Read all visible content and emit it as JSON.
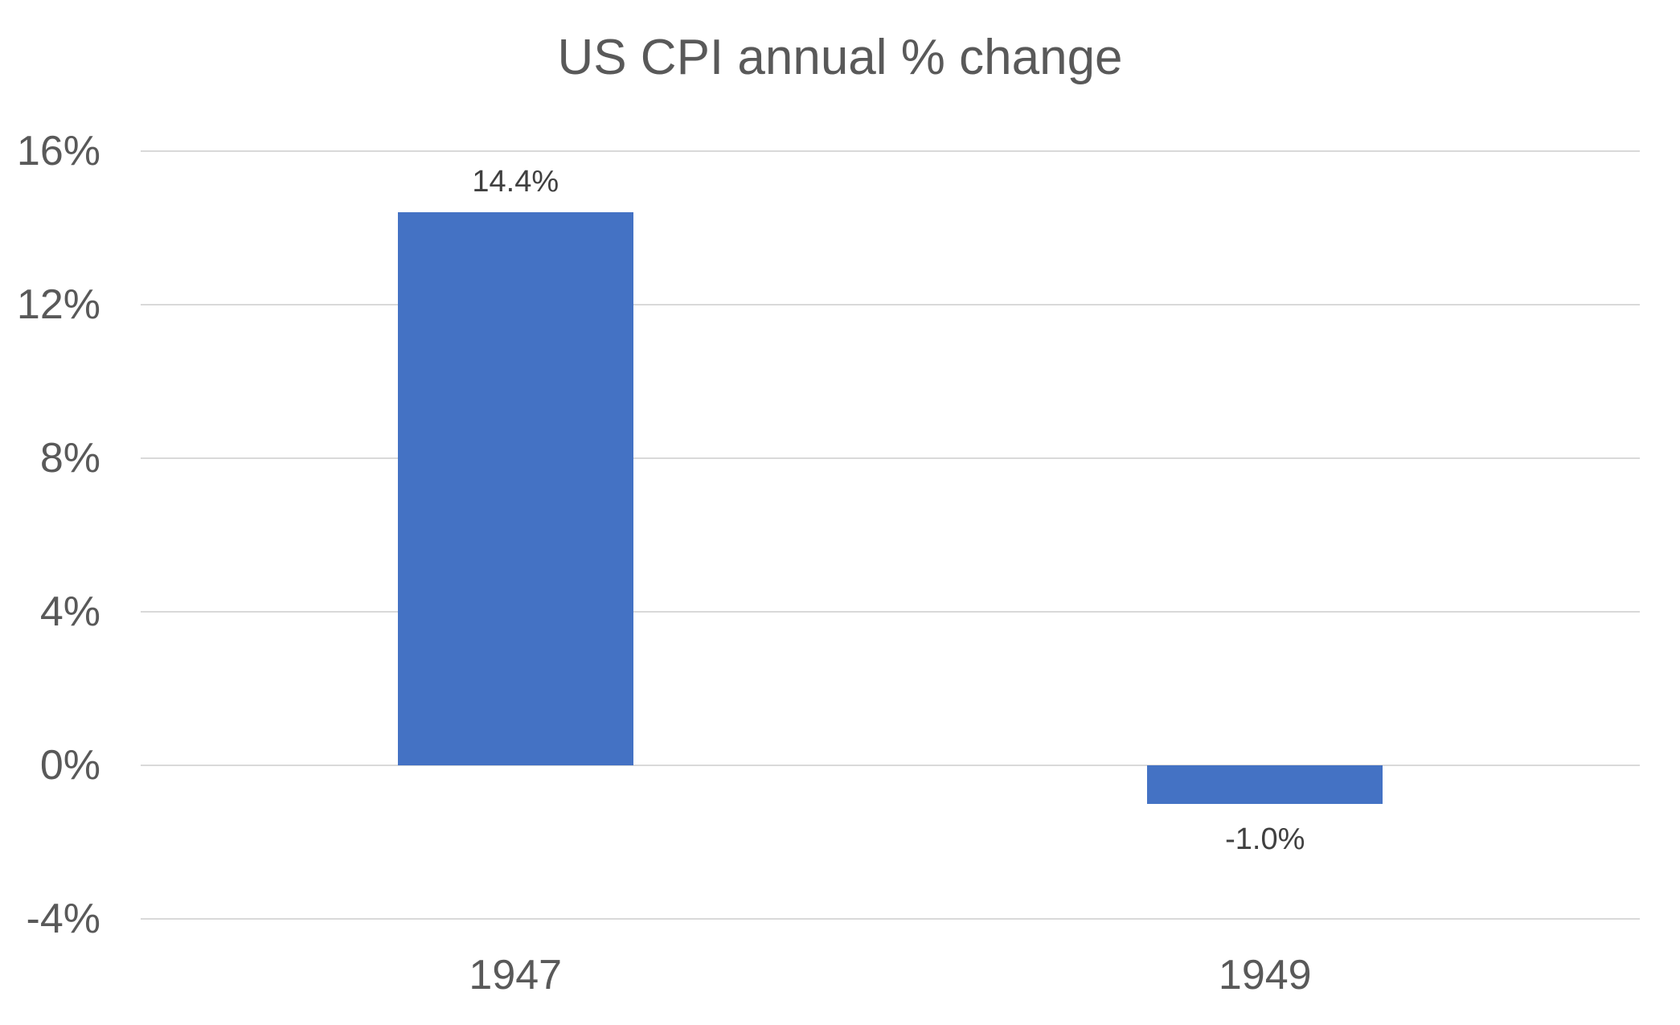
{
  "chart_data": {
    "type": "bar",
    "title": "US CPI annual % change",
    "categories": [
      "1947",
      "1949"
    ],
    "series": [
      {
        "name": "US CPI annual % change",
        "values": [
          14.4,
          -1.0
        ],
        "data_labels": [
          "14.4%",
          "-1.0%"
        ]
      }
    ],
    "xlabel": "",
    "ylabel": "",
    "ylim": [
      -4,
      16
    ],
    "y_ticks": [
      {
        "value": 16,
        "label": "16%"
      },
      {
        "value": 12,
        "label": "12%"
      },
      {
        "value": 8,
        "label": "8%"
      },
      {
        "value": 4,
        "label": "4%"
      },
      {
        "value": 0,
        "label": "0%"
      },
      {
        "value": -4,
        "label": "-4%"
      }
    ],
    "grid": "horizontal-only",
    "legend": "none",
    "colors": {
      "bar": "#4472C4",
      "title_text": "#595959",
      "axis_text": "#595959",
      "data_label_text": "#404040",
      "gridline": "#D9D9D9",
      "background": "#FFFFFF"
    }
  }
}
